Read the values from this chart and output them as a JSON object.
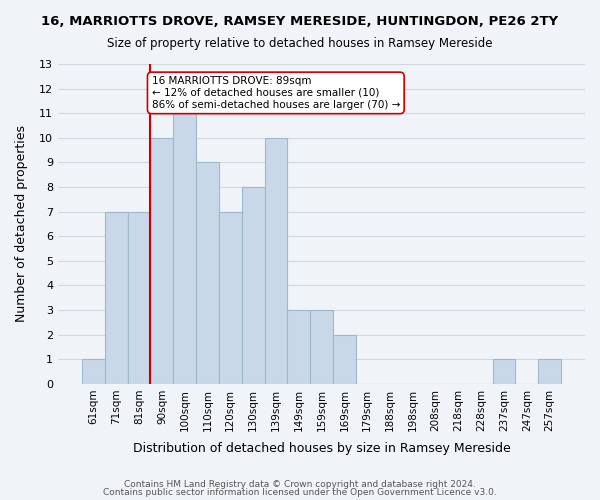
{
  "title": "16, MARRIOTTS DROVE, RAMSEY MERESIDE, HUNTINGDON, PE26 2TY",
  "subtitle": "Size of property relative to detached houses in Ramsey Mereside",
  "xlabel": "Distribution of detached houses by size in Ramsey Mereside",
  "ylabel": "Number of detached properties",
  "footer_line1": "Contains HM Land Registry data © Crown copyright and database right 2024.",
  "footer_line2": "Contains public sector information licensed under the Open Government Licence v3.0.",
  "bar_labels": [
    "61sqm",
    "71sqm",
    "81sqm",
    "90sqm",
    "100sqm",
    "110sqm",
    "120sqm",
    "130sqm",
    "139sqm",
    "149sqm",
    "159sqm",
    "169sqm",
    "179sqm",
    "188sqm",
    "198sqm",
    "208sqm",
    "218sqm",
    "228sqm",
    "237sqm",
    "247sqm",
    "257sqm"
  ],
  "bar_values": [
    1,
    7,
    7,
    10,
    11,
    9,
    7,
    8,
    10,
    3,
    3,
    2,
    0,
    0,
    0,
    0,
    0,
    0,
    1,
    0,
    1
  ],
  "bar_color": "#c8d8e8",
  "bar_edge_color": "#a0b8cc",
  "grid_color": "#d0d8e0",
  "background_color": "#f0f4f8",
  "property_line_x": 90,
  "property_size": "89sqm",
  "annotation_title": "16 MARRIOTTS DROVE: 89sqm",
  "annotation_line1": "← 12% of detached houses are smaller (10)",
  "annotation_line2": "86% of semi-detached houses are larger (70) →",
  "annotation_box_color": "#ffffff",
  "annotation_border_color": "#cc0000",
  "property_line_color": "#cc0000",
  "ylim": [
    0,
    13
  ],
  "yticks": [
    0,
    1,
    2,
    3,
    4,
    5,
    6,
    7,
    8,
    9,
    10,
    11,
    12,
    13
  ]
}
